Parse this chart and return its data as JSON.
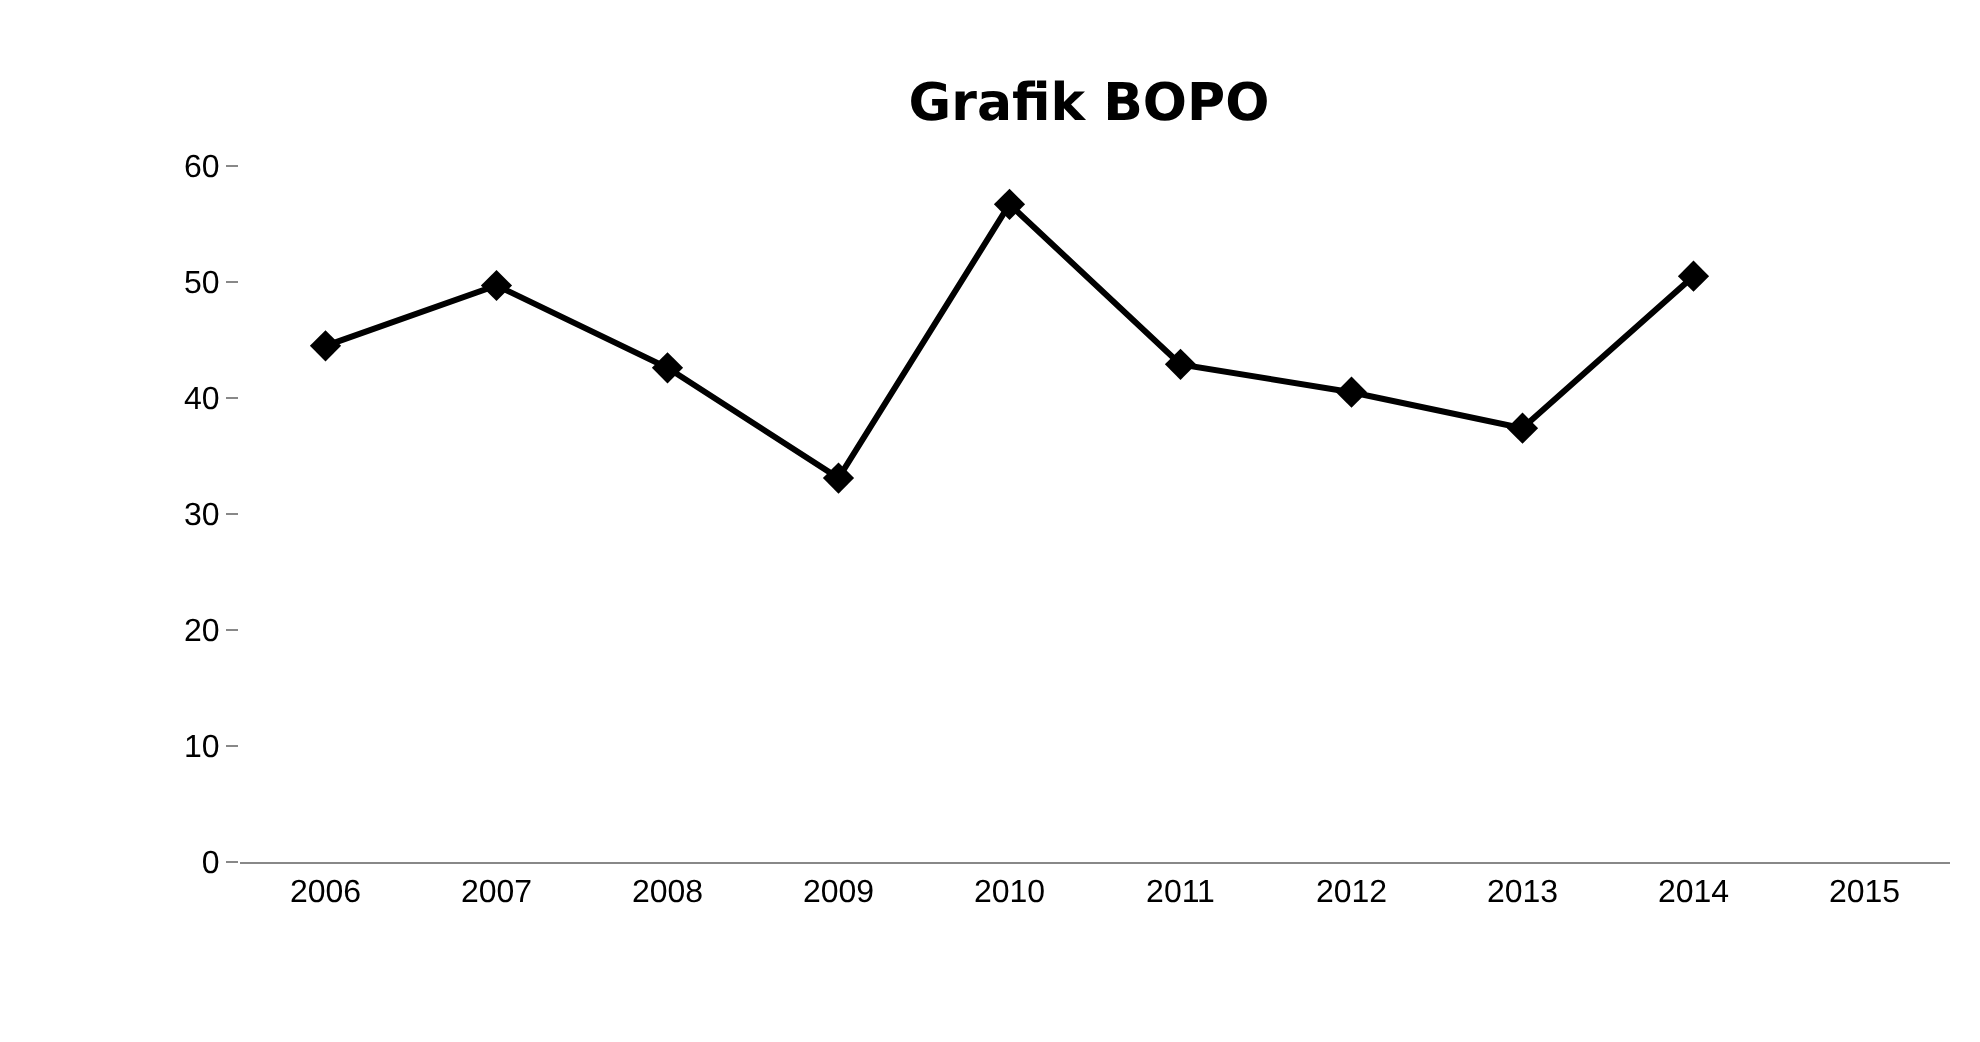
{
  "chart_data": {
    "type": "line",
    "title": "Grafik BOPO",
    "categories": [
      "2006",
      "2007",
      "2008",
      "2009",
      "2010",
      "2011",
      "2012",
      "2013",
      "2014",
      "2015"
    ],
    "series": [
      {
        "color": "#000000",
        "values": [
          44.5,
          49.7,
          42.6,
          33.1,
          56.7,
          42.9,
          40.5,
          37.4,
          50.5,
          null
        ]
      }
    ],
    "ylim": [
      0,
      60
    ],
    "yticks": [
      0,
      10,
      20,
      30,
      40,
      50,
      60
    ],
    "grid": false,
    "legend": false,
    "marker": "diamond",
    "line_style": "solid"
  }
}
